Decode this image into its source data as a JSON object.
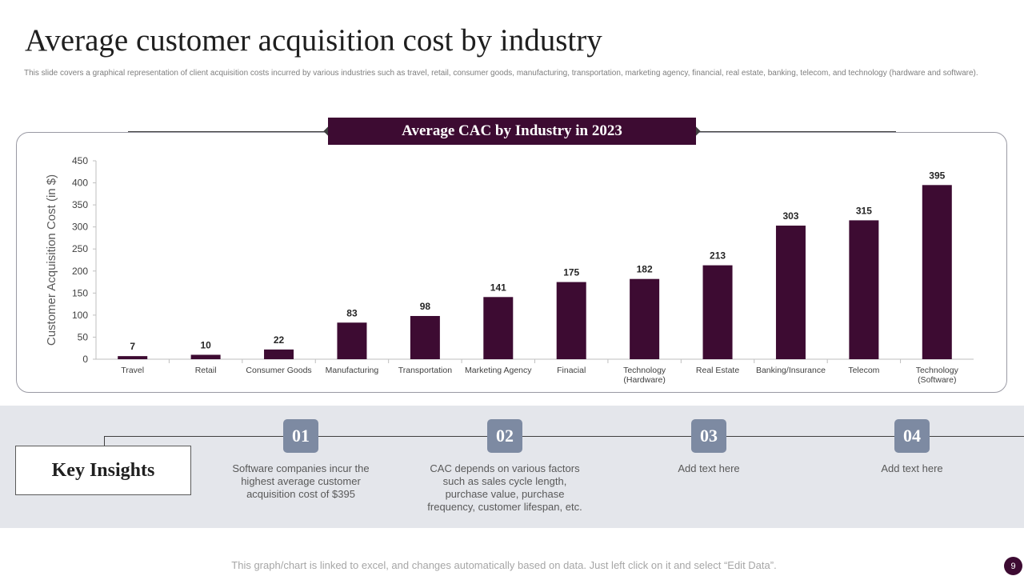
{
  "slide": {
    "title": "Average customer acquisition cost by industry",
    "description": "This slide covers a graphical representation of client acquisition costs incurred by various industries such as travel, retail, consumer goods, manufacturing, transportation, marketing agency, financial, real estate, banking,  telecom, and technology (hardware and software).",
    "footer_note": "This graph/chart is linked to excel, and changes automatically based on data. Just left click on it and select “Edit Data”.",
    "page_number": "9"
  },
  "chart_data": {
    "type": "bar",
    "title": "Average CAC by Industry in 2023",
    "xlabel": "",
    "ylabel": "Customer Acquisition Cost (in $)",
    "ylim": [
      0,
      450
    ],
    "yticks": [
      0,
      50,
      100,
      150,
      200,
      250,
      300,
      350,
      400,
      450
    ],
    "categories": [
      [
        "Travel"
      ],
      [
        "Retail"
      ],
      [
        "Consumer Goods"
      ],
      [
        "Manufacturing"
      ],
      [
        "Transportation"
      ],
      [
        "Marketing Agency"
      ],
      [
        "Finacial"
      ],
      [
        "Technology",
        "(Hardware)"
      ],
      [
        "Real Estate"
      ],
      [
        "Banking/Insurance"
      ],
      [
        "Telecom"
      ],
      [
        "Technology",
        "(Software)"
      ]
    ],
    "values": [
      7,
      10,
      22,
      83,
      98,
      141,
      175,
      182,
      213,
      303,
      315,
      395
    ],
    "bar_color": "#3d0b32"
  },
  "insights": {
    "heading": "Key Insights",
    "items": [
      {
        "number": "01",
        "text": "Software companies incur the highest average  customer acquisition cost of $395"
      },
      {
        "number": "02",
        "text": "CAC depends on various factors such as sales cycle length, purchase value,  purchase frequency, customer lifespan, etc."
      },
      {
        "number": "03",
        "text": "Add text here"
      },
      {
        "number": "04",
        "text": "Add text here"
      }
    ]
  }
}
